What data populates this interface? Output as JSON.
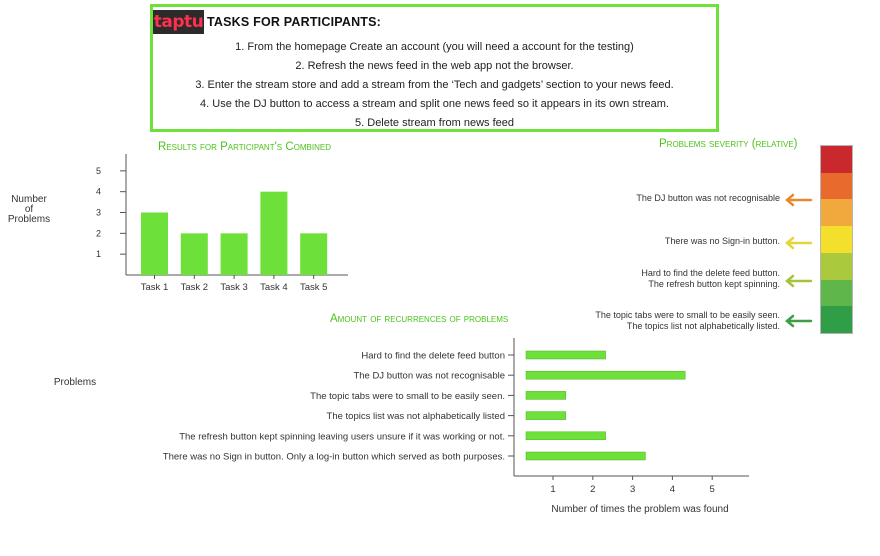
{
  "tasks_panel": {
    "logo_text": "taptu",
    "title": "TASKS FOR PARTICIPANTS:",
    "items": [
      "1. From the homepage Create an account (you will need a account for the testing)",
      "2. Refresh the news feed in the web app not the browser.",
      "3. Enter the stream store and add a stream from the ‘Tech and gadgets’ section to your news feed.",
      "4. Use the DJ button to access a stream and split one news feed so it appears in its own stream.",
      "5. Delete stream from news feed"
    ]
  },
  "severity": {
    "title": "Problems severity (relative)",
    "scale_colors": [
      "#c9282d",
      "#e86a2c",
      "#f1a93d",
      "#f4e02c",
      "#abc93c",
      "#5fb64a",
      "#2f9e46"
    ],
    "items": [
      {
        "lines": [
          "The DJ button was not recognisable"
        ],
        "color": "#e8892f"
      },
      {
        "lines": [
          "There was no Sign-in button."
        ],
        "color": "#e6d53a"
      },
      {
        "lines": [
          "Hard to find the delete feed button.",
          "The refresh button kept spinning."
        ],
        "color": "#a6c33d"
      },
      {
        "lines": [
          "The topic tabs were to small to be easily seen.",
          "The topics list not alphabetically listed."
        ],
        "color": "#3e9e45"
      }
    ]
  },
  "chart_data": [
    {
      "type": "bar",
      "title": "Results for Participant's Combined",
      "ylabel": "Number of Problems",
      "xlabel": "",
      "categories": [
        "Task 1",
        "Task 2",
        "Task 3",
        "Task 4",
        "Task 5"
      ],
      "values": [
        3,
        2,
        2,
        4,
        2
      ],
      "ylim": [
        0,
        5
      ],
      "yticks": [
        1,
        2,
        3,
        4,
        5
      ],
      "bar_color": "#6ee03a",
      "grid": false
    },
    {
      "type": "bar",
      "orientation": "horizontal",
      "title": "Amount of recurrences of problems",
      "ylabel": "Problems",
      "xlabel": "Number of times the problem was found",
      "categories": [
        "Hard to find the delete feed button",
        "The DJ button was not recognisable",
        "The topic tabs were to small to be easily seen.",
        "The topics list was not alphabetically listed",
        "The refresh button kept spinning leaving users unsure if it was working or not.",
        "There was no Sign in button. Only a log-in button which served as both purposes."
      ],
      "values": [
        2,
        4,
        1,
        1,
        2,
        3
      ],
      "xlim": [
        0,
        5
      ],
      "xticks": [
        1,
        2,
        3,
        4,
        5
      ],
      "bar_color": "#6ee03a",
      "grid": false
    }
  ]
}
